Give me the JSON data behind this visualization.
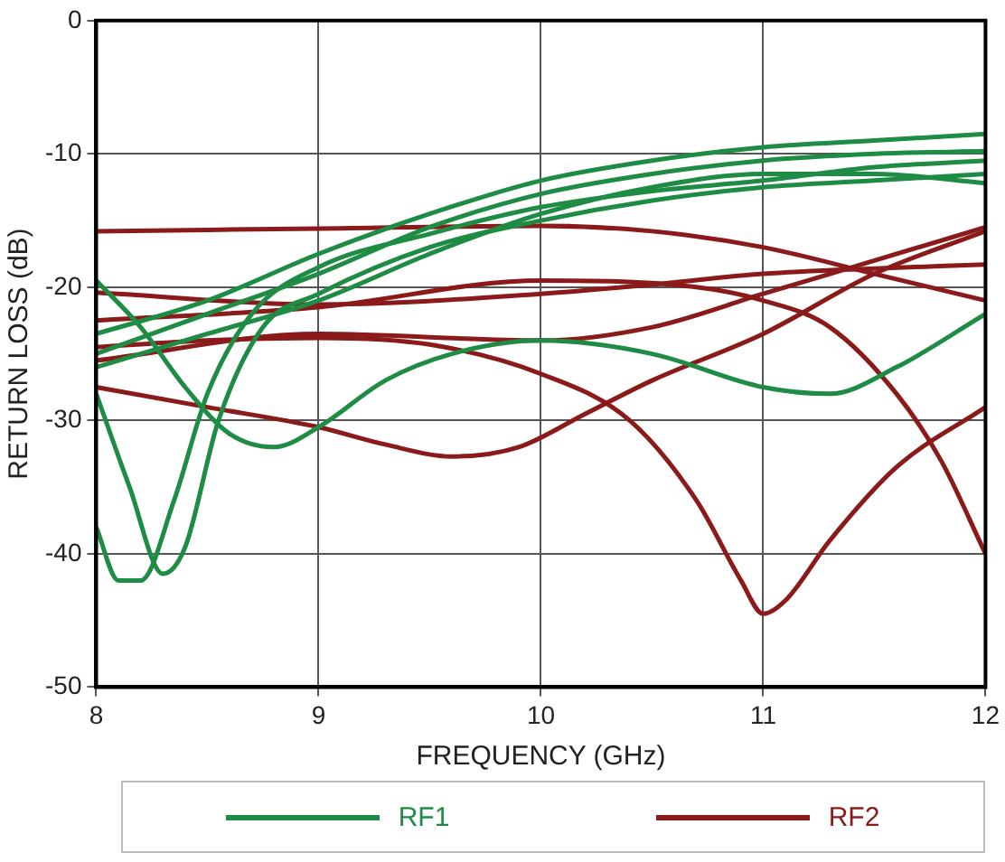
{
  "chart_data": {
    "type": "line",
    "xlabel": "FREQUENCY (GHz)",
    "ylabel": "RETURN LOSS (dB)",
    "xlim": [
      8,
      12
    ],
    "xticks": [
      8,
      9,
      10,
      11,
      12
    ],
    "ylim": [
      -50,
      0
    ],
    "yticks": [
      0,
      -10,
      -20,
      -30,
      -40,
      -50
    ],
    "grid": true,
    "legend": "bottom",
    "marker": "none",
    "line_style": "solid",
    "series": [
      {
        "name": "RF1",
        "color": "#1e8c45",
        "x": [
          8,
          8.5,
          9,
          9.5,
          10,
          10.5,
          11,
          11.5,
          12
        ],
        "values": [
          -23.5,
          -21,
          -17.5,
          -14.5,
          -12,
          -10.5,
          -9.5,
          -9,
          -8.5
        ]
      },
      {
        "color": "#1e8c45",
        "x": [
          8,
          8.5,
          9,
          9.5,
          10,
          10.5,
          11,
          11.5,
          12
        ],
        "values": [
          -25,
          -22,
          -19,
          -15.5,
          -13,
          -11.5,
          -10.5,
          -10,
          -9.8
        ]
      },
      {
        "color": "#1e8c45",
        "x": [
          8,
          8.5,
          9,
          9.5,
          10,
          10.5,
          11,
          11.5,
          12
        ],
        "values": [
          -26,
          -23.5,
          -21,
          -17.5,
          -14.5,
          -12.5,
          -11.5,
          -11.5,
          -12.2
        ]
      },
      {
        "color": "#1e8c45",
        "x": [
          8,
          8.1,
          8.2,
          8.35,
          8.5,
          8.7,
          9,
          9.5,
          10,
          10.5,
          11,
          11.5,
          12
        ],
        "values": [
          -38,
          -42,
          -42,
          -36,
          -28,
          -22,
          -18.5,
          -16,
          -14,
          -12.8,
          -12,
          -11,
          -10.5
        ]
      },
      {
        "color": "#1e8c45",
        "x": [
          8,
          8.15,
          8.3,
          8.4,
          8.55,
          8.75,
          9,
          9.5,
          10,
          10.5,
          11,
          11.5,
          12
        ],
        "values": [
          -28,
          -35,
          -41.5,
          -39.5,
          -30,
          -23,
          -20.5,
          -17,
          -15,
          -13.5,
          -12.5,
          -12,
          -11.5
        ]
      },
      {
        "color": "#1e8c45",
        "x": [
          8,
          8.2,
          8.4,
          8.6,
          8.8,
          9,
          9.3,
          9.6,
          10,
          10.5,
          11,
          11.3,
          11.6,
          12
        ],
        "values": [
          -19.5,
          -23,
          -27.5,
          -31,
          -32,
          -30.5,
          -27,
          -25,
          -24,
          -25,
          -27.5,
          -28,
          -26,
          -22
        ]
      },
      {
        "name": "RF2",
        "color": "#8b1a1a",
        "x": [
          8,
          9,
          10,
          10.5,
          11,
          11.5,
          12
        ],
        "values": [
          -15.8,
          -15.6,
          -15.4,
          -15.8,
          -17,
          -19,
          -21
        ]
      },
      {
        "color": "#8b1a1a",
        "x": [
          8,
          9,
          10,
          10.5,
          11,
          11.5,
          12
        ],
        "values": [
          -20.4,
          -21.3,
          -20.5,
          -19.8,
          -19,
          -18.6,
          -18.3
        ]
      },
      {
        "color": "#8b1a1a",
        "x": [
          8,
          9,
          10,
          10.7,
          11,
          11.3,
          11.6,
          11.8,
          12
        ],
        "values": [
          -22.5,
          -21.5,
          -19.5,
          -20,
          -21,
          -23,
          -28,
          -33,
          -40
        ]
      },
      {
        "color": "#8b1a1a",
        "x": [
          8,
          9,
          10,
          10.5,
          11,
          11.5,
          12
        ],
        "values": [
          -25.5,
          -23.5,
          -24,
          -23,
          -20.5,
          -18,
          -15.5
        ]
      },
      {
        "color": "#8b1a1a",
        "x": [
          8,
          8.5,
          9,
          9.5,
          10,
          10.4,
          10.7,
          10.9,
          11,
          11.1,
          11.3,
          11.6,
          12
        ],
        "values": [
          -24.5,
          -24,
          -23.8,
          -24.3,
          -26.5,
          -30,
          -36,
          -42,
          -44.5,
          -43.5,
          -39,
          -33.5,
          -29
        ]
      },
      {
        "color": "#8b1a1a",
        "x": [
          8,
          8.5,
          9,
          9.3,
          9.6,
          9.9,
          10.2,
          10.5,
          11,
          11.5,
          12
        ],
        "values": [
          -27.5,
          -29,
          -30.5,
          -31.8,
          -32.7,
          -32,
          -29.5,
          -27,
          -23.5,
          -19,
          -15.8
        ]
      }
    ]
  }
}
